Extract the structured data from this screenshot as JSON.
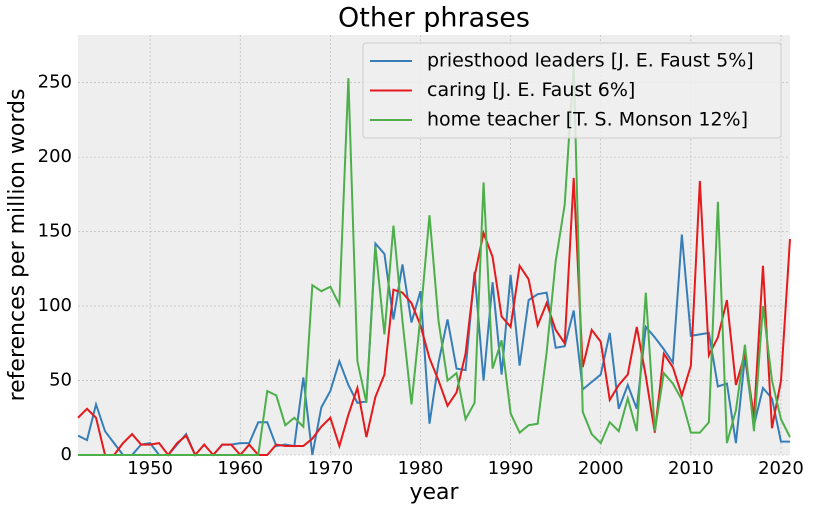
{
  "chart_data": {
    "type": "line",
    "title": "Other phrases",
    "x_label": "year",
    "y_label": "references per million words",
    "x": [
      1942,
      1943,
      1944,
      1945,
      1946,
      1947,
      1948,
      1949,
      1950,
      1951,
      1952,
      1953,
      1954,
      1955,
      1956,
      1957,
      1958,
      1959,
      1960,
      1961,
      1962,
      1963,
      1964,
      1965,
      1966,
      1967,
      1968,
      1969,
      1970,
      1971,
      1972,
      1973,
      1974,
      1975,
      1976,
      1977,
      1978,
      1979,
      1980,
      1981,
      1982,
      1983,
      1984,
      1985,
      1986,
      1987,
      1988,
      1989,
      1990,
      1991,
      1992,
      1993,
      1994,
      1995,
      1996,
      1997,
      1998,
      1999,
      2000,
      2001,
      2002,
      2003,
      2004,
      2005,
      2006,
      2007,
      2008,
      2009,
      2010,
      2011,
      2012,
      2013,
      2014,
      2015,
      2016,
      2017,
      2018,
      2019,
      2020,
      2021
    ],
    "series": [
      {
        "name": "priesthood leaders [J. E. Faust 5%]",
        "color": "#377eb8",
        "values": [
          13,
          10,
          34,
          16,
          8,
          0,
          0,
          7,
          8,
          0,
          0,
          7,
          14,
          0,
          0,
          0,
          7,
          7,
          8,
          8,
          22,
          22,
          6,
          7,
          6,
          52,
          0,
          32,
          43,
          63,
          47,
          35,
          36,
          142,
          135,
          91,
          128,
          89,
          110,
          21,
          62,
          91,
          58,
          57,
          123,
          50,
          116,
          54,
          121,
          60,
          104,
          108,
          109,
          72,
          73,
          97,
          44,
          49,
          54,
          82,
          31,
          47,
          31,
          86,
          79,
          71,
          62,
          148,
          80,
          81,
          82,
          46,
          48,
          8,
          66,
          20,
          45,
          38,
          9,
          9
        ]
      },
      {
        "name": "caring [J. E. Faust 6%]",
        "color": "#e41a1c",
        "values": [
          25,
          31,
          25,
          0,
          0,
          8,
          14,
          7,
          7,
          8,
          0,
          8,
          13,
          0,
          7,
          0,
          7,
          7,
          0,
          7,
          0,
          0,
          7,
          6,
          6,
          6,
          11,
          19,
          25,
          6,
          27,
          45,
          12,
          39,
          54,
          111,
          109,
          102,
          87,
          65,
          50,
          33,
          42,
          68,
          120,
          149,
          133,
          93,
          86,
          127,
          118,
          87,
          102,
          84,
          75,
          186,
          59,
          84,
          76,
          37,
          47,
          54,
          86,
          53,
          15,
          68,
          59,
          40,
          60,
          184,
          67,
          79,
          104,
          47,
          68,
          25,
          127,
          18,
          50,
          145
        ]
      },
      {
        "name": "home teacher [T. S. Monson 12%]",
        "color": "#4daf4a",
        "values": [
          0,
          0,
          0,
          0,
          0,
          0,
          0,
          0,
          0,
          0,
          0,
          0,
          0,
          0,
          0,
          0,
          0,
          0,
          0,
          0,
          0,
          43,
          40,
          20,
          25,
          19,
          114,
          110,
          113,
          101,
          253,
          63,
          35,
          140,
          81,
          154,
          90,
          34,
          93,
          161,
          90,
          50,
          55,
          24,
          35,
          183,
          58,
          77,
          28,
          15,
          20,
          21,
          69,
          130,
          168,
          262,
          29,
          14,
          8,
          22,
          16,
          38,
          16,
          109,
          16,
          55,
          48,
          37,
          15,
          15,
          22,
          170,
          8,
          30,
          74,
          16,
          100,
          50,
          24,
          12
        ]
      }
    ],
    "xlim": [
      1942,
      2021
    ],
    "ylim": [
      0,
      282
    ],
    "xticks": [
      1950,
      1960,
      1970,
      1980,
      1990,
      2000,
      2010,
      2020
    ],
    "yticks": [
      0,
      50,
      100,
      150,
      200,
      250
    ],
    "grid": true,
    "legend": "upper right"
  }
}
